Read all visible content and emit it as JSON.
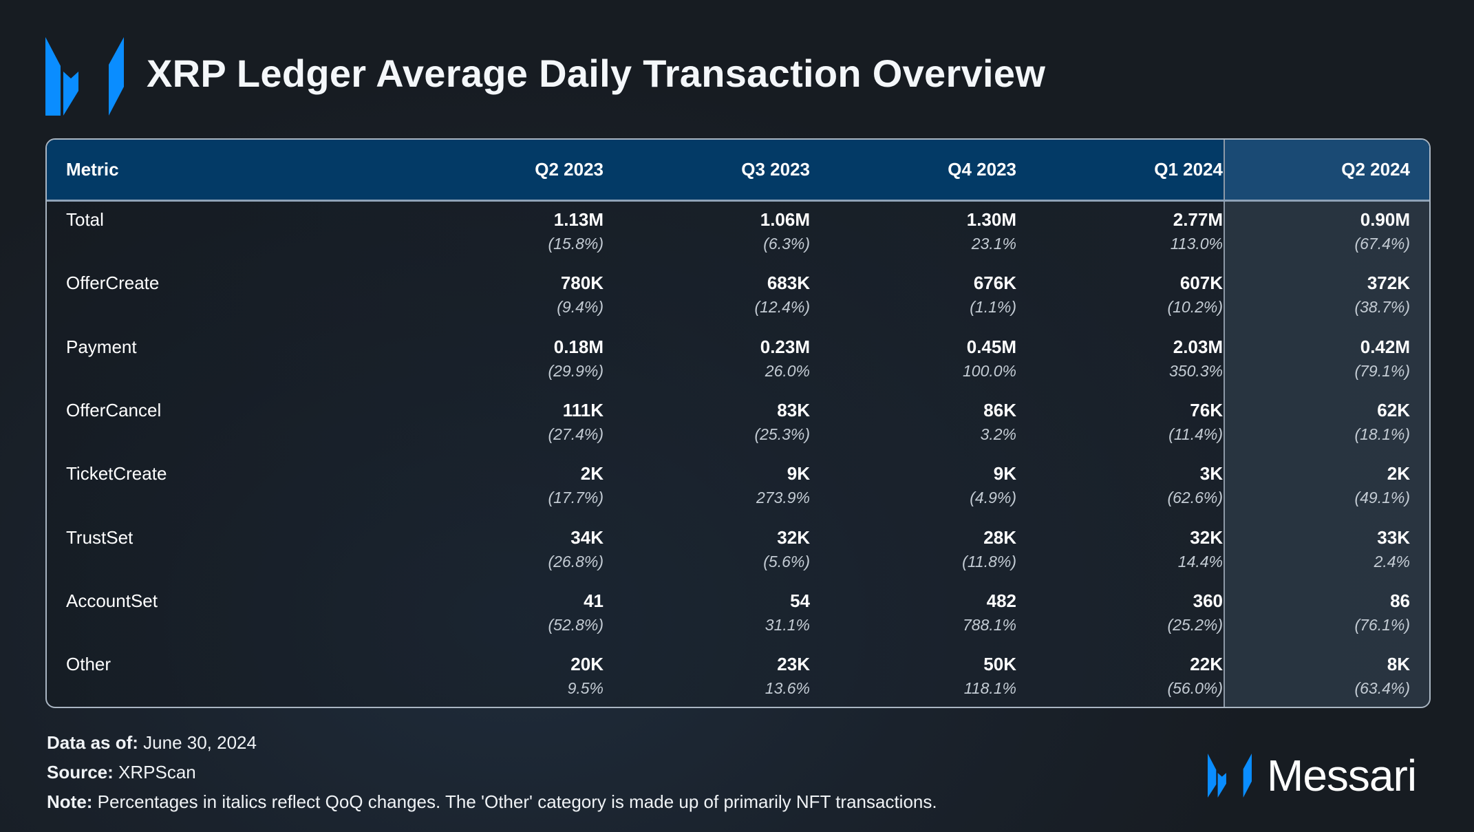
{
  "header": {
    "title": "XRP Ledger Average Daily Transaction Overview",
    "logo_icon": "messari-m-logo-icon"
  },
  "colors": {
    "accent": "#0a8dff",
    "header_bg": "#033a66",
    "highlight_column_bg": "#2e3b48"
  },
  "chart_data": {
    "type": "table",
    "title": "XRP Ledger Average Daily Transaction Overview",
    "columns": [
      "Metric",
      "Q2 2023",
      "Q3 2023",
      "Q4 2023",
      "Q1 2024",
      "Q2 2024"
    ],
    "highlighted_column": "Q2 2024",
    "rows": [
      {
        "metric": "Total",
        "values": [
          "1.13M",
          "1.06M",
          "1.30M",
          "2.77M",
          "0.90M"
        ],
        "changes": [
          "(15.8%)",
          "(6.3%)",
          "23.1%",
          "113.0%",
          "(67.4%)"
        ]
      },
      {
        "metric": "OfferCreate",
        "values": [
          "780K",
          "683K",
          "676K",
          "607K",
          "372K"
        ],
        "changes": [
          "(9.4%)",
          "(12.4%)",
          "(1.1%)",
          "(10.2%)",
          "(38.7%)"
        ]
      },
      {
        "metric": "Payment",
        "values": [
          "0.18M",
          "0.23M",
          "0.45M",
          "2.03M",
          "0.42M"
        ],
        "changes": [
          "(29.9%)",
          "26.0%",
          "100.0%",
          "350.3%",
          "(79.1%)"
        ]
      },
      {
        "metric": "OfferCancel",
        "values": [
          "111K",
          "83K",
          "86K",
          "76K",
          "62K"
        ],
        "changes": [
          "(27.4%)",
          "(25.3%)",
          "3.2%",
          "(11.4%)",
          "(18.1%)"
        ]
      },
      {
        "metric": "TicketCreate",
        "values": [
          "2K",
          "9K",
          "9K",
          "3K",
          "2K"
        ],
        "changes": [
          "(17.7%)",
          "273.9%",
          "(4.9%)",
          "(62.6%)",
          "(49.1%)"
        ]
      },
      {
        "metric": "TrustSet",
        "values": [
          "34K",
          "32K",
          "28K",
          "32K",
          "33K"
        ],
        "changes": [
          "(26.8%)",
          "(5.6%)",
          "(11.8%)",
          "14.4%",
          "2.4%"
        ]
      },
      {
        "metric": "AccountSet",
        "values": [
          "41",
          "54",
          "482",
          "360",
          "86"
        ],
        "changes": [
          "(52.8%)",
          "31.1%",
          "788.1%",
          "(25.2%)",
          "(76.1%)"
        ]
      },
      {
        "metric": "Other",
        "values": [
          "20K",
          "23K",
          "50K",
          "22K",
          "8K"
        ],
        "changes": [
          "9.5%",
          "13.6%",
          "118.1%",
          "(56.0%)",
          "(63.4%)"
        ]
      }
    ]
  },
  "footer": {
    "date_label": "Data as of:",
    "date_value": " June 30, 2024",
    "source_label": "Source:",
    "source_value": " XRPScan",
    "note_label": "Note:",
    "note_value": " Percentages in italics reflect QoQ changes. The 'Other' category is made up of primarily NFT transactions."
  },
  "brand": {
    "name": "Messari",
    "logo_icon": "messari-m-logo-icon"
  }
}
